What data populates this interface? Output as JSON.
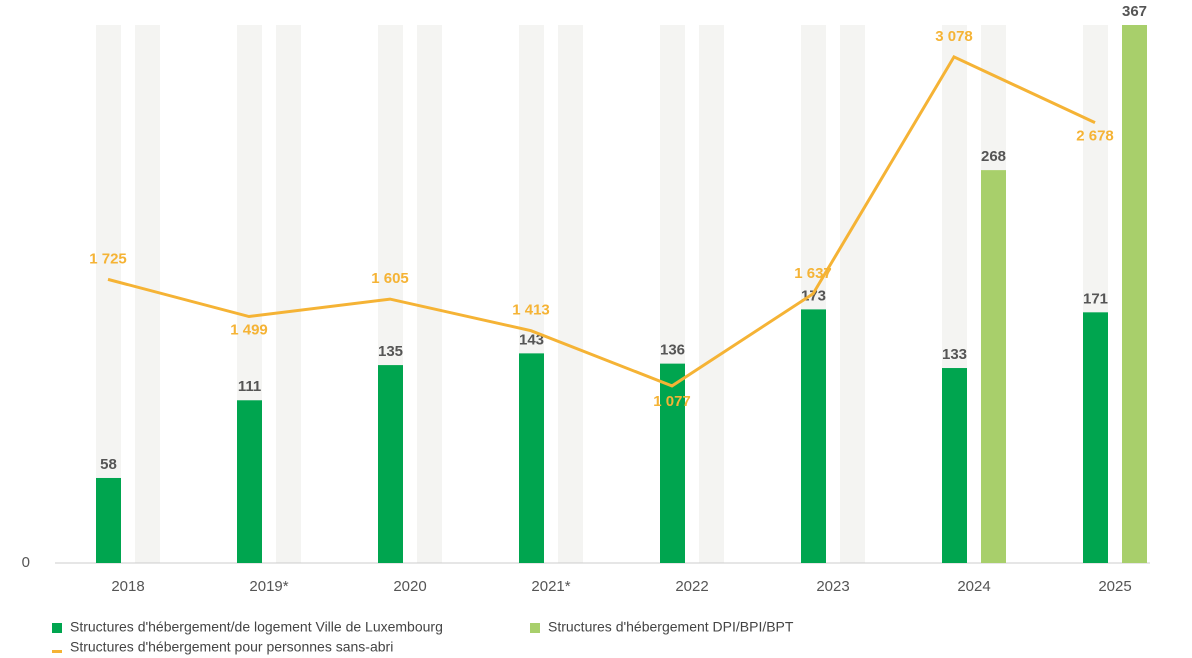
{
  "chart_data": {
    "type": "bar",
    "categories": [
      "2018",
      "2019*",
      "2020",
      "2021*",
      "2022",
      "2023",
      "2024",
      "2025"
    ],
    "series": [
      {
        "name": "Structures d'hébergement/de logement Ville de Luxembourg",
        "color": "#00a54f",
        "values": [
          58,
          111,
          135,
          143,
          136,
          173,
          133,
          171
        ]
      },
      {
        "name": "Structures d'hébergement DPI/BPI/BPT",
        "color": "#a8cf6b",
        "values": [
          null,
          null,
          null,
          null,
          null,
          null,
          268,
          367
        ]
      },
      {
        "name": "Structures d'hébergement pour personnes sans-abri",
        "color": "#f5b335",
        "type": "line",
        "axis": "y2",
        "values": [
          1725,
          1499,
          1605,
          1413,
          1077,
          1637,
          3078,
          2678
        ],
        "value_labels": [
          "1 725",
          "1 499",
          "1 605",
          "1 413",
          "1 077",
          "1 637",
          "3 078",
          "2 678"
        ]
      }
    ],
    "ylim": [
      0,
      367
    ],
    "yticks": [
      0
    ],
    "y2lim": [
      0,
      3272
    ]
  }
}
